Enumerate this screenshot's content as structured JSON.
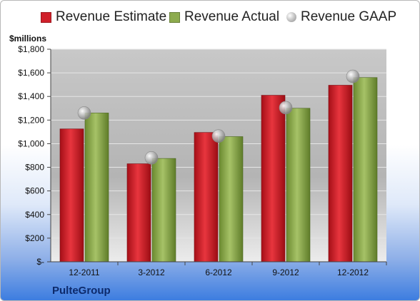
{
  "legend": {
    "estimate_label": "Revenue Estimate",
    "actual_label": "Revenue Actual",
    "gaap_label": "Revenue GAAP"
  },
  "unit_label": "$millions",
  "company_label": "PulteGroup",
  "colors": {
    "estimate": "#d0202a",
    "actual": "#8dab4e",
    "gaap": "#b0b0b0"
  },
  "chart_data": {
    "type": "bar",
    "categories": [
      "12-2011",
      "3-2012",
      "6-2012",
      "9-2012",
      "12-2012"
    ],
    "series": [
      {
        "name": "Revenue Estimate",
        "values": [
          1125,
          830,
          1095,
          1410,
          1495
        ]
      },
      {
        "name": "Revenue Actual",
        "values": [
          1260,
          875,
          1060,
          1300,
          1560
        ]
      },
      {
        "name": "Revenue GAAP",
        "values": [
          1260,
          880,
          1065,
          1305,
          1570
        ]
      }
    ],
    "ylabel": "$millions",
    "ylim": [
      0,
      1800
    ],
    "yticks": [
      0,
      200,
      400,
      600,
      800,
      1000,
      1200,
      1400,
      1600,
      1800
    ],
    "ytick_labels": [
      "$-",
      "$200",
      "$400",
      "$600",
      "$800",
      "$1,000",
      "$1,200",
      "$1,400",
      "$1,600",
      "$1,800"
    ],
    "grid": true,
    "legend_position": "top"
  }
}
